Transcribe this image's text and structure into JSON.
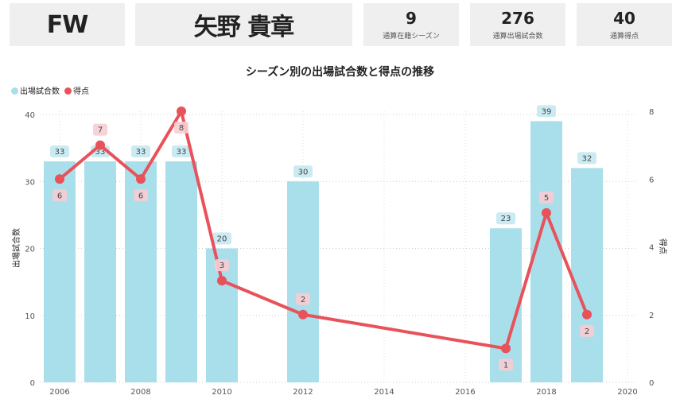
{
  "header": {
    "position": "FW",
    "player_name": "矢野 貴章",
    "stats": [
      {
        "value": "9",
        "label": "通算在籍シーズン"
      },
      {
        "value": "276",
        "label": "通算出場試合数"
      },
      {
        "value": "40",
        "label": "通算得点"
      }
    ]
  },
  "colors": {
    "bar": "#a8dfeb",
    "line": "#e8525a",
    "bar_label_bg": "#c5e9f2",
    "line_label_bg": "#f6cdd3"
  },
  "chart_data": {
    "type": "bar+line",
    "title": "シーズン別の出場試合数と得点の推移",
    "legend": [
      "出場試合数",
      "得点"
    ],
    "legend_position": "top-left",
    "xlabel": "",
    "ylabel": "出場試合数",
    "y2label": "得点",
    "x": [
      2006,
      2007,
      2008,
      2009,
      2010,
      2012,
      2017,
      2018,
      2019
    ],
    "series": [
      {
        "name": "出場試合数",
        "type": "bar",
        "axis": "left",
        "values": [
          33,
          33,
          33,
          33,
          20,
          30,
          23,
          39,
          32
        ]
      },
      {
        "name": "得点",
        "type": "line",
        "axis": "right",
        "values": [
          6,
          7,
          6,
          8,
          3,
          2,
          1,
          5,
          2
        ]
      }
    ],
    "xticks": [
      2006,
      2008,
      2010,
      2012,
      2014,
      2016,
      2018,
      2020
    ],
    "yticks": [
      0,
      10,
      20,
      30,
      40
    ],
    "y2ticks": [
      0,
      2,
      4,
      6,
      8
    ],
    "ylim": [
      0,
      40
    ],
    "y2lim": [
      0,
      8
    ],
    "grid": true
  }
}
